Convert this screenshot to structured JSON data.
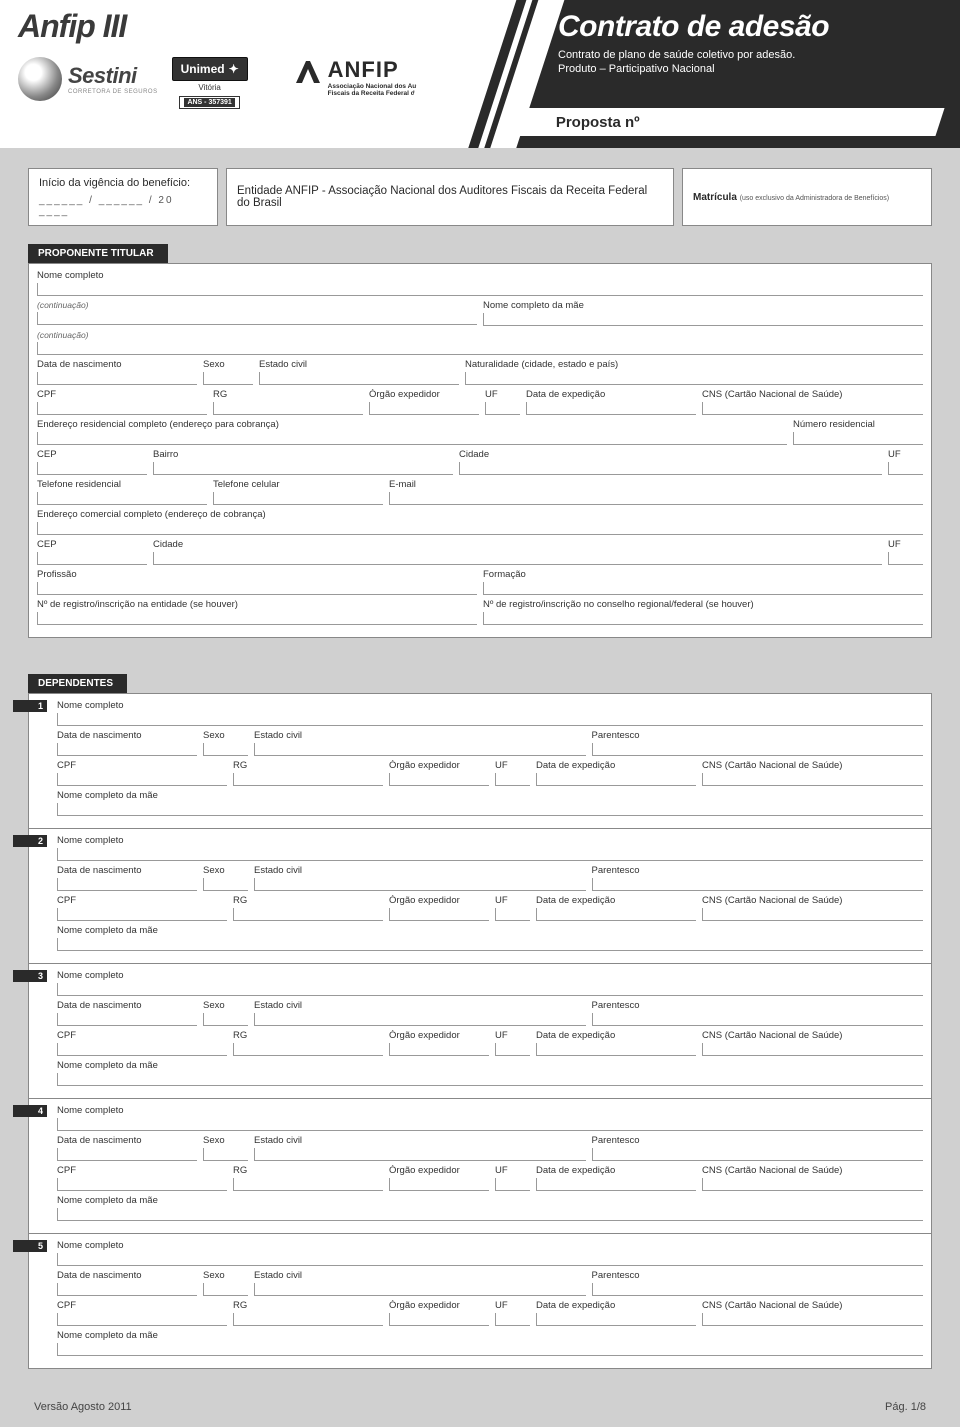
{
  "header": {
    "brand": "Anfip III",
    "sestini": {
      "name": "Sestini",
      "tag": "CORRETORA DE SEGUROS"
    },
    "unimed": {
      "name": "Unimed",
      "city": "Vitória",
      "ans": "ANS - 357391"
    },
    "anfip": {
      "name": "ANFIP",
      "line1": "Associação Nacional dos Auditores",
      "line2": "Fiscais da Receita Federal do Brasil."
    },
    "right_title": "Contrato de adesão",
    "right_sub1": "Contrato de plano de saúde coletivo por adesão.",
    "right_sub2": "Produto – Participativo Nacional",
    "proposta": "Proposta nº"
  },
  "toprow": {
    "vig_label": "Início da vigência do benefício:",
    "vig_date": "______ / ______ / 20 ____",
    "entidade": "Entidade ANFIP - Associação Nacional dos Auditores Fiscais da Receita Federal do Brasil",
    "matricula": "Matrícula",
    "matricula_sub": "(uso exclusivo da Administradora de Benefícios)"
  },
  "sections": {
    "titular": "PROPONENTE TITULAR",
    "dependentes": "DEPENDENTES"
  },
  "labels": {
    "nome": "Nome completo",
    "cont": "(continuação)",
    "nome_mae": "Nome completo da mãe",
    "dnasc": "Data de nascimento",
    "sexo": "Sexo",
    "ecivil": "Estado civil",
    "naturalidade": "Naturalidade (cidade, estado e país)",
    "cpf": "CPF",
    "rg": "RG",
    "orgao": "Órgão expedidor",
    "uf": "UF",
    "dexp": "Data de expedição",
    "cns": "CNS (Cartão Nacional de Saúde)",
    "end_res": "Endereço residencial completo (endereço para cobrança)",
    "num_res": "Número residencial",
    "cep": "CEP",
    "bairro": "Bairro",
    "cidade": "Cidade",
    "tel_res": "Telefone residencial",
    "tel_cel": "Telefone celular",
    "email": "E-mail",
    "end_com": "Endereço comercial completo (endereço de cobrança)",
    "profissao": "Profissão",
    "formacao": "Formação",
    "reg_ent": "Nº de registro/inscrição na entidade (se houver)",
    "reg_cons": "Nº de registro/inscrição no conselho regional/federal (se houver)",
    "parentesco": "Parentesco"
  },
  "dependentes": [
    "1",
    "2",
    "3",
    "4",
    "5"
  ],
  "footer": {
    "versao": "Versão Agosto 2011",
    "pag": "Pág. 1/8"
  },
  "style": {
    "bg": "#d0d0d0",
    "ink": "#2a2a2a",
    "panel": "#ffffff",
    "border": "#888888",
    "line": "#999999"
  }
}
